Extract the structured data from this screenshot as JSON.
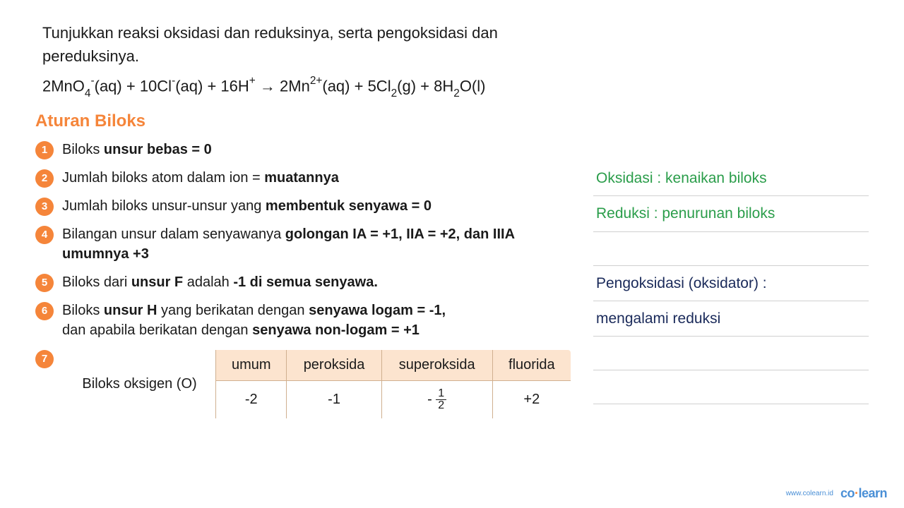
{
  "question": {
    "line1": "Tunjukkan reaksi oksidasi dan reduksinya, serta pengoksidasi dan",
    "line2": "pereduksinya."
  },
  "equation_parts": {
    "p1": "2MnO",
    "s1": "4",
    "p1sup": "-",
    "p2": "(aq) + 10Cl",
    "p2sup": "-",
    "p3": "(aq) + 16H",
    "p3sup": "+",
    "arrow": " → ",
    "p4": "2Mn",
    "p4sup": "2+",
    "p5": "(aq) + 5Cl",
    "s2": "2",
    "p6": "(g) + 8H",
    "s3": "2",
    "p7": "O(l)"
  },
  "section_title": "Aturan Biloks",
  "rules": [
    {
      "n": "1",
      "pre": "Biloks ",
      "bold": "unsur bebas = 0",
      "post": ""
    },
    {
      "n": "2",
      "pre": "Jumlah biloks atom dalam ion = ",
      "bold": "muatannya",
      "post": ""
    },
    {
      "n": "3",
      "pre": "Jumlah biloks unsur-unsur yang ",
      "bold": "membentuk senyawa = 0",
      "post": ""
    },
    {
      "n": "4",
      "pre": "Bilangan unsur dalam senyawanya ",
      "bold": "golongan IA = +1, IIA = +2, dan IIIA umumnya +3",
      "post": ""
    },
    {
      "n": "5",
      "pre": "Biloks dari ",
      "bold": "unsur F",
      "post_mid": " adalah ",
      "bold2": "-1 di semua senyawa.",
      "post": ""
    },
    {
      "n": "6",
      "pre": "Biloks ",
      "bold": "unsur H",
      "post_mid": " yang berikatan dengan ",
      "bold2": "senyawa logam = -1,",
      "line2_pre": "dan apabila berikatan dengan ",
      "line2_bold": "senyawa non-logam = +1"
    }
  ],
  "bullet7": "7",
  "oxy_table": {
    "row_header": "Biloks oksigen (O)",
    "columns": [
      "umum",
      "peroksida",
      "superoksida",
      "fluorida"
    ],
    "values": [
      "-2",
      "-1",
      "",
      "+2"
    ],
    "frac_neg": "- ",
    "frac_top": "1",
    "frac_bot": "2"
  },
  "notes": {
    "l1": "Oksidasi : kenaikan biloks",
    "l2": "Reduksi : penurunan biloks",
    "l3": "",
    "l4": "Pengoksidasi (oksidator) :",
    "l5": "mengalami reduksi",
    "l6": "",
    "l7": ""
  },
  "footer": {
    "url": "www.colearn.id",
    "logo_co": "co",
    "logo_dot": "·",
    "logo_learn": "learn"
  },
  "colors": {
    "accent": "#f5853a",
    "green": "#2a9d4a",
    "navy": "#1a2a5a",
    "blue": "#4a8fd6",
    "text": "#1a1a1a",
    "th_bg": "#fce4cf",
    "border": "#d0b090",
    "note_line": "#d0d0d0",
    "bg": "#ffffff"
  }
}
